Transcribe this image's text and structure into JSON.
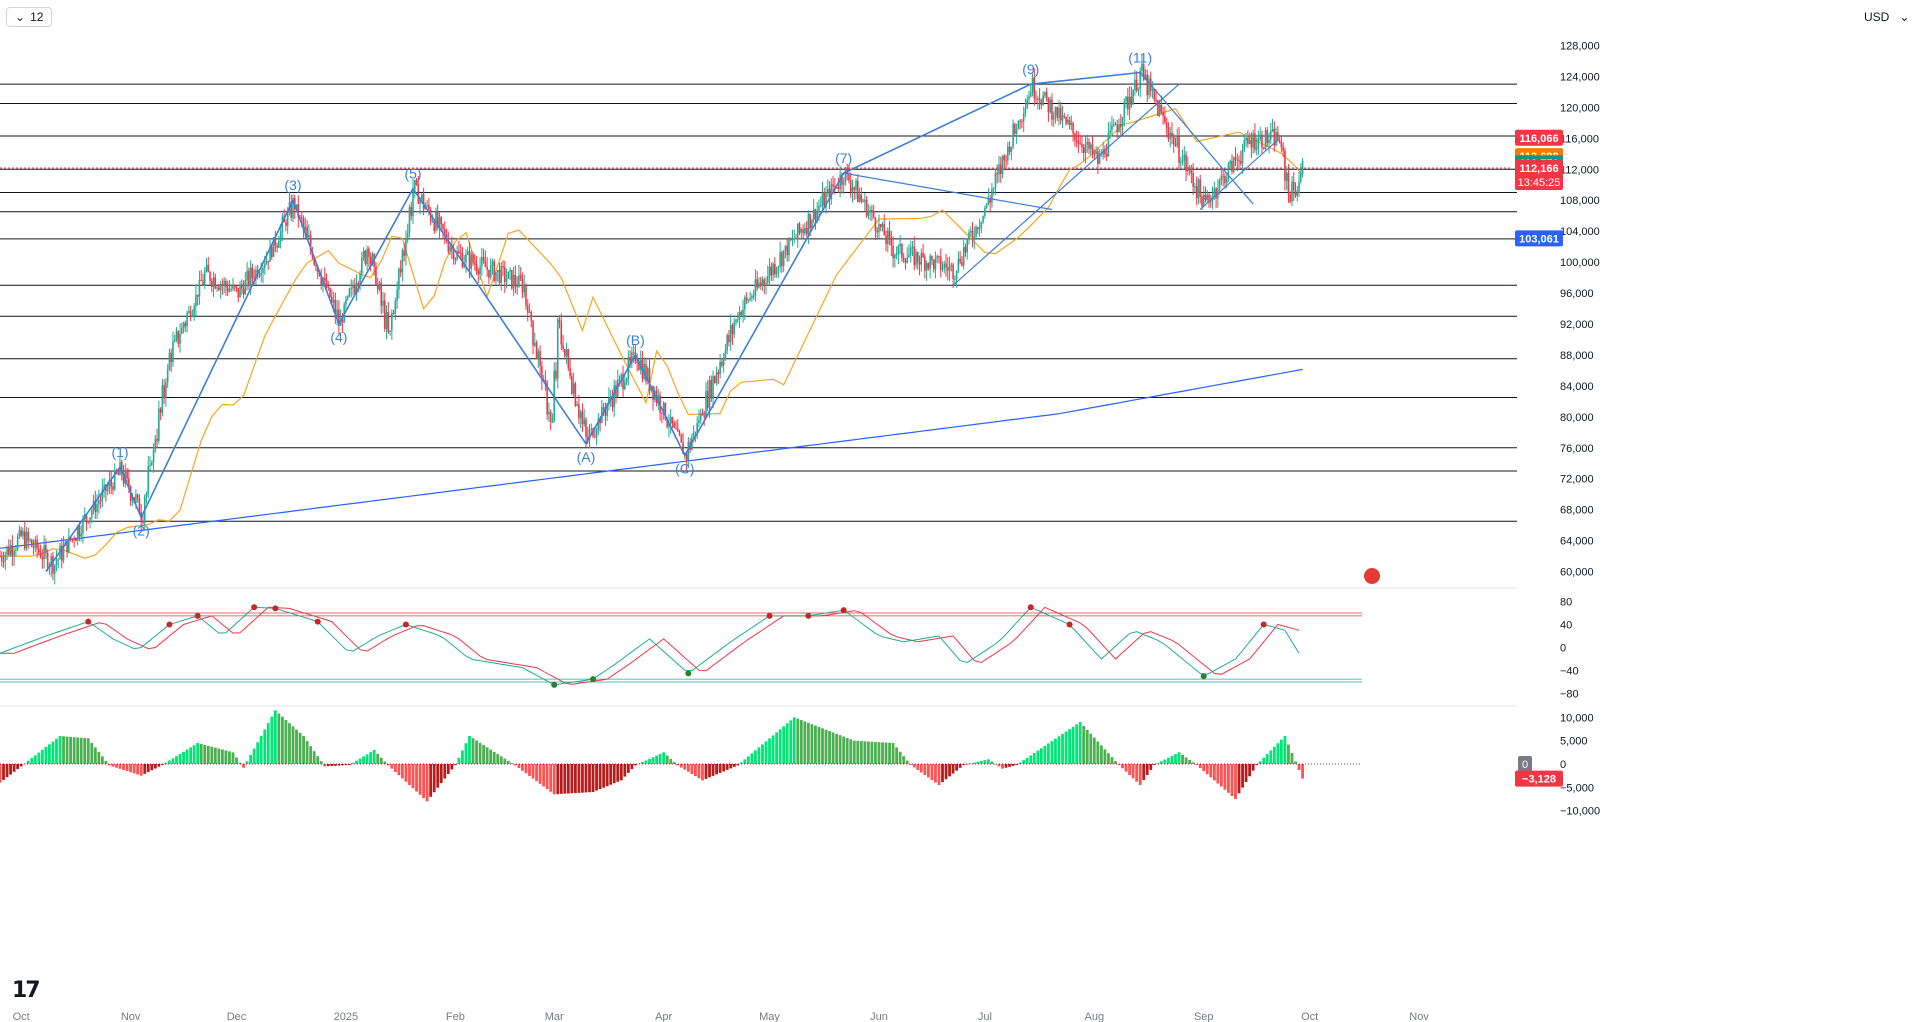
{
  "toolbar": {
    "interval": "12",
    "currency": "USD"
  },
  "colors": {
    "up": "#22ab94",
    "down": "#f23645",
    "wave": "#3d7edb",
    "ma50": "#f5a623",
    "ma200": "#2962ff",
    "cloud_up": "#e6f4ea",
    "cloud_down": "#fde3e5"
  },
  "chart_data": [
    {
      "type": "candlestick",
      "title": "",
      "ylim": [
        58000,
        130000
      ],
      "y_ticks": [
        "60,000",
        "64,000",
        "68,000",
        "72,000",
        "76,000",
        "80,000",
        "84,000",
        "88,000",
        "92,000",
        "96,000",
        "100,000",
        "104,000",
        "108,000",
        "112,000",
        "116,000",
        "120,000",
        "124,000",
        "128,000"
      ],
      "x_ticks": [
        "Oct",
        "Nov",
        "Dec",
        "2025",
        "Feb",
        "Mar",
        "Apr",
        "May",
        "Jun",
        "Jul",
        "Aug",
        "Sep",
        "Oct",
        "Nov"
      ],
      "price_path": [
        [
          "2024-09-25",
          62000
        ],
        [
          "2024-10-01",
          64500
        ],
        [
          "2024-10-10",
          61000
        ],
        [
          "2024-10-20",
          67500
        ],
        [
          "2024-10-29",
          73000
        ],
        [
          "2024-11-04",
          67500
        ],
        [
          "2024-11-12",
          88000
        ],
        [
          "2024-11-22",
          98500
        ],
        [
          "2024-12-01",
          96000
        ],
        [
          "2024-12-10",
          101000
        ],
        [
          "2024-12-17",
          107500
        ],
        [
          "2024-12-30",
          92000
        ],
        [
          "2025-01-07",
          102000
        ],
        [
          "2025-01-13",
          90500
        ],
        [
          "2025-01-20",
          109500
        ],
        [
          "2025-02-01",
          101000
        ],
        [
          "2025-02-20",
          97000
        ],
        [
          "2025-02-28",
          79000
        ],
        [
          "2025-03-02",
          91500
        ],
        [
          "2025-03-10",
          77000
        ],
        [
          "2025-03-24",
          88000
        ],
        [
          "2025-04-07",
          75000
        ],
        [
          "2025-04-22",
          93500
        ],
        [
          "2025-05-22",
          111500
        ],
        [
          "2025-06-05",
          101500
        ],
        [
          "2025-06-22",
          99000
        ],
        [
          "2025-07-01",
          107000
        ],
        [
          "2025-07-14",
          122800
        ],
        [
          "2025-08-02",
          113000
        ],
        [
          "2025-08-14",
          124400
        ],
        [
          "2025-09-01",
          107500
        ],
        [
          "2025-09-14",
          115800
        ],
        [
          "2025-09-22",
          116000
        ],
        [
          "2025-09-25",
          109000
        ],
        [
          "2025-09-27",
          109500
        ],
        [
          "2025-09-29",
          112166
        ]
      ],
      "horizontal_levels": [
        66500,
        73000,
        76000,
        82500,
        87500,
        93000,
        97000,
        103000,
        106500,
        109000,
        112000,
        116300,
        120500,
        123000
      ],
      "wave_labels": [
        {
          "label": "(1)",
          "date": "2024-10-29",
          "price": 73500
        },
        {
          "label": "(2)",
          "date": "2024-11-04",
          "price": 67000
        },
        {
          "label": "(3)",
          "date": "2024-12-17",
          "price": 108000
        },
        {
          "label": "(4)",
          "date": "2024-12-30",
          "price": 92000
        },
        {
          "label": "(5)",
          "date": "2025-01-20",
          "price": 109500
        },
        {
          "label": "(A)",
          "date": "2025-03-10",
          "price": 76500
        },
        {
          "label": "(B)",
          "date": "2025-03-24",
          "price": 88000
        },
        {
          "label": "(C)",
          "date": "2025-04-07",
          "price": 75000
        },
        {
          "label": "(7)",
          "date": "2025-05-22",
          "price": 111500
        },
        {
          "label": "(9)",
          "date": "2025-07-14",
          "price": 123000
        },
        {
          "label": "(11)",
          "date": "2025-08-14",
          "price": 124500
        }
      ],
      "price_labels": [
        {
          "value": "116,066",
          "price": 116066,
          "color": "#f23645"
        },
        {
          "value": "113,698",
          "price": 113698,
          "color": "#f57c00"
        },
        {
          "value": "112,776",
          "price": 112776,
          "color": "#089981"
        },
        {
          "value": "112,166",
          "price": 112166,
          "color": "#f23645",
          "countdown": "13:45:25"
        },
        {
          "value": "103,061",
          "price": 103061,
          "color": "#2962ff"
        }
      ]
    },
    {
      "type": "line",
      "title": "",
      "ylim": [
        -100,
        100
      ],
      "y_ticks": [
        "80",
        "40",
        "0",
        "−40",
        "−80"
      ],
      "levels": [
        60,
        55,
        -55,
        -60
      ],
      "k_path": [
        [
          "2024-09-25",
          -10
        ],
        [
          "2024-10-08",
          20
        ],
        [
          "2024-10-20",
          45
        ],
        [
          "2024-10-27",
          15
        ],
        [
          "2024-11-03",
          -5
        ],
        [
          "2024-11-12",
          40
        ],
        [
          "2024-11-20",
          55
        ],
        [
          "2024-11-27",
          20
        ],
        [
          "2024-12-06",
          70
        ],
        [
          "2024-12-12",
          68
        ],
        [
          "2024-12-24",
          45
        ],
        [
          "2025-01-02",
          -10
        ],
        [
          "2025-01-10",
          20
        ],
        [
          "2025-01-18",
          40
        ],
        [
          "2025-01-28",
          20
        ],
        [
          "2025-02-05",
          -20
        ],
        [
          "2025-02-20",
          -35
        ],
        [
          "2025-03-01",
          -65
        ],
        [
          "2025-03-12",
          -55
        ],
        [
          "2025-03-18",
          -30
        ],
        [
          "2025-03-28",
          15
        ],
        [
          "2025-04-08",
          -45
        ],
        [
          "2025-04-20",
          10
        ],
        [
          "2025-05-01",
          55
        ],
        [
          "2025-05-12",
          55
        ],
        [
          "2025-05-22",
          65
        ],
        [
          "2025-06-01",
          20
        ],
        [
          "2025-06-08",
          10
        ],
        [
          "2025-06-18",
          20
        ],
        [
          "2025-06-25",
          -30
        ],
        [
          "2025-07-05",
          10
        ],
        [
          "2025-07-14",
          70
        ],
        [
          "2025-07-25",
          40
        ],
        [
          "2025-08-03",
          -20
        ],
        [
          "2025-08-12",
          30
        ],
        [
          "2025-08-20",
          10
        ],
        [
          "2025-09-01",
          -50
        ],
        [
          "2025-09-10",
          -20
        ],
        [
          "2025-09-18",
          40
        ],
        [
          "2025-09-24",
          30
        ],
        [
          "2025-09-29",
          -20
        ]
      ]
    },
    {
      "type": "bar",
      "title": "",
      "ylim": [
        -12000,
        12000
      ],
      "y_ticks": [
        "10,000",
        "5,000",
        "0",
        "−5,000",
        "−10,000"
      ],
      "last_value": "−3,128",
      "zero_label": "0",
      "histogram_path": [
        [
          "2024-09-25",
          -4000
        ],
        [
          "2024-10-01",
          -500
        ],
        [
          "2024-10-12",
          6000
        ],
        [
          "2024-10-20",
          5500
        ],
        [
          "2024-10-26",
          -300
        ],
        [
          "2024-11-04",
          -2500
        ],
        [
          "2024-11-10",
          -200
        ],
        [
          "2024-11-20",
          4500
        ],
        [
          "2024-11-30",
          2500
        ],
        [
          "2024-12-03",
          -800
        ],
        [
          "2024-12-12",
          11500
        ],
        [
          "2024-12-20",
          6000
        ],
        [
          "2024-12-26",
          -500
        ],
        [
          "2025-01-02",
          -200
        ],
        [
          "2025-01-09",
          3000
        ],
        [
          "2025-01-13",
          -300
        ],
        [
          "2025-01-24",
          -8000
        ],
        [
          "2025-02-01",
          -200
        ],
        [
          "2025-02-05",
          6000
        ],
        [
          "2025-02-18",
          -300
        ],
        [
          "2025-03-01",
          -6500
        ],
        [
          "2025-03-12",
          -6000
        ],
        [
          "2025-03-20",
          -3500
        ],
        [
          "2025-03-24",
          -300
        ],
        [
          "2025-04-01",
          2500
        ],
        [
          "2025-04-05",
          -300
        ],
        [
          "2025-04-12",
          -3500
        ],
        [
          "2025-04-22",
          -300
        ],
        [
          "2025-05-08",
          10000
        ],
        [
          "2025-05-25",
          5000
        ],
        [
          "2025-06-05",
          4500
        ],
        [
          "2025-06-10",
          -200
        ],
        [
          "2025-06-18",
          -4500
        ],
        [
          "2025-06-25",
          -200
        ],
        [
          "2025-07-02",
          1000
        ],
        [
          "2025-07-06",
          -1000
        ],
        [
          "2025-07-10",
          -200
        ],
        [
          "2025-07-28",
          9000
        ],
        [
          "2025-08-08",
          -200
        ],
        [
          "2025-08-14",
          -4500
        ],
        [
          "2025-08-18",
          -200
        ],
        [
          "2025-08-25",
          2500
        ],
        [
          "2025-08-30",
          -200
        ],
        [
          "2025-09-10",
          -7500
        ],
        [
          "2025-09-16",
          -200
        ],
        [
          "2025-09-24",
          6000
        ],
        [
          "2025-09-29",
          -3128
        ]
      ]
    }
  ]
}
